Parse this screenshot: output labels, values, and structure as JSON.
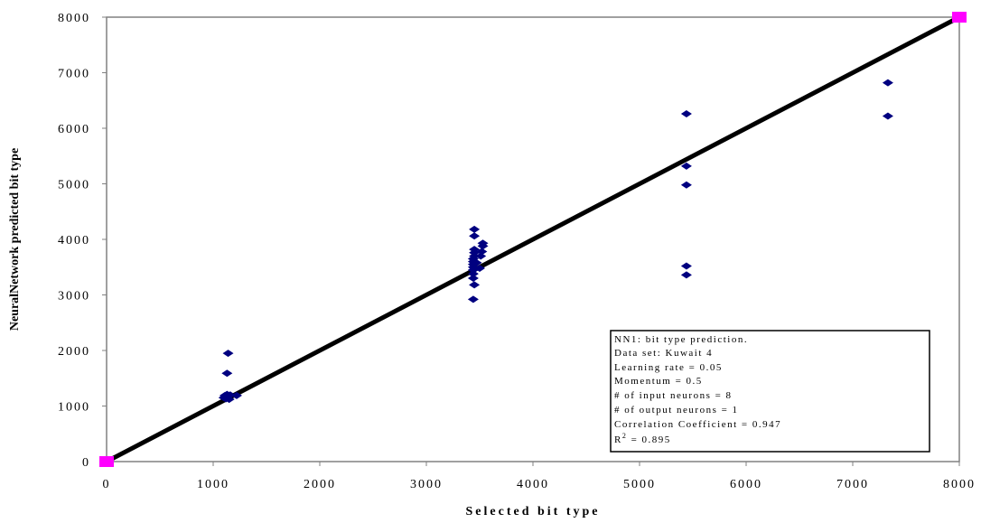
{
  "chart_data": {
    "type": "scatter",
    "xlabel": "Selected bit type",
    "ylabel": "NeuralNetwork predicted bit type",
    "xlim": [
      0,
      8000
    ],
    "ylim": [
      0,
      8000
    ],
    "x_ticks": [
      "0",
      "1000",
      "2000",
      "3000",
      "4000",
      "5000",
      "6000",
      "7000",
      "8000"
    ],
    "y_ticks": [
      "0",
      "1000",
      "2000",
      "3000",
      "4000",
      "5000",
      "6000",
      "7000",
      "8000"
    ],
    "grid": false,
    "series": [
      {
        "marker": "diamond",
        "color": "#000080",
        "points": [
          [
            1100,
            1150
          ],
          [
            1110,
            1190
          ],
          [
            1120,
            1130
          ],
          [
            1130,
            1210
          ],
          [
            1140,
            1180
          ],
          [
            1150,
            1120
          ],
          [
            1160,
            1200
          ],
          [
            1130,
            1590
          ],
          [
            1140,
            1950
          ],
          [
            1220,
            1190
          ],
          [
            3440,
            2920
          ],
          [
            3450,
            3180
          ],
          [
            3440,
            3300
          ],
          [
            3440,
            3380
          ],
          [
            3440,
            3450
          ],
          [
            3440,
            3500
          ],
          [
            3440,
            3550
          ],
          [
            3440,
            3600
          ],
          [
            3440,
            3650
          ],
          [
            3450,
            3700
          ],
          [
            3450,
            3760
          ],
          [
            3450,
            3820
          ],
          [
            3450,
            4060
          ],
          [
            3450,
            4180
          ],
          [
            3500,
            3480
          ],
          [
            3510,
            3700
          ],
          [
            3520,
            3780
          ],
          [
            3530,
            3880
          ],
          [
            3530,
            3930
          ],
          [
            3470,
            3580
          ],
          [
            5440,
            3360
          ],
          [
            5440,
            3520
          ],
          [
            5440,
            4980
          ],
          [
            5440,
            5320
          ],
          [
            5440,
            6260
          ],
          [
            7330,
            6220
          ],
          [
            7330,
            6820
          ]
        ]
      },
      {
        "marker": "square",
        "color": "#ff00ff",
        "points": [
          [
            0,
            0
          ],
          [
            8000,
            8000
          ]
        ]
      }
    ],
    "reference_line": {
      "from": [
        0,
        0
      ],
      "to": [
        8000,
        8000
      ],
      "color": "#000000"
    },
    "annotation": {
      "lines": [
        "NN1: bit type prediction.",
        "Data set: Kuwait 4",
        "Learning rate = 0.05",
        "Momentum = 0.5",
        "# of input neurons = 8",
        "# of output neurons = 1",
        "Correlation Coefficient = 0.947"
      ],
      "r2_label": "R",
      "r2_sup": "2",
      "r2_value": " = 0.895"
    }
  }
}
